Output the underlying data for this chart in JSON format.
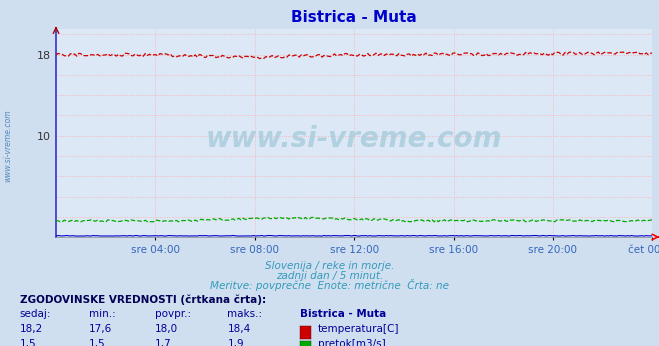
{
  "title": "Bistrica - Muta",
  "title_color": "#0000cc",
  "bg_color": "#d0dff0",
  "plot_bg_color": "#dce8f5",
  "grid_h_color": "#ffaaaa",
  "grid_v_color": "#ffaaaa",
  "left_spine_color": "#3333cc",
  "xlabel_color": "#3366bb",
  "x_tick_labels": [
    "sre 04:00",
    "sre 08:00",
    "sre 12:00",
    "sre 16:00",
    "sre 20:00",
    "čet 00:00"
  ],
  "x_tick_positions": [
    0.1667,
    0.3333,
    0.5,
    0.6667,
    0.8333,
    1.0
  ],
  "y_ticks_labeled": [
    10,
    18
  ],
  "ylim": [
    0,
    20.5
  ],
  "xlim": [
    0,
    1.0
  ],
  "subtitle_line1": "Slovenija / reke in morje.",
  "subtitle_line2": "zadnji dan / 5 minut.",
  "subtitle_line3": "Meritve: povprečne  Enote: metrične  Črta: ne",
  "subtitle_color": "#3399bb",
  "watermark": "www.si-vreme.com",
  "watermark_color": "#aaccdd",
  "side_text": "www.si-vreme.com",
  "side_text_color": "#5588bb",
  "temp_color": "#cc0000",
  "flow_color": "#00aa00",
  "level_color": "#0000cc",
  "table_header": "ZGODOVINSKE VREDNOSTI (črtkana črta):",
  "table_cols": [
    "sedaj:",
    "min.:",
    "povpr.:",
    "maks.:",
    "Bistrica - Muta"
  ],
  "table_row1": [
    "18,2",
    "17,6",
    "18,0",
    "18,4",
    "temperatura[C]"
  ],
  "table_row2": [
    "1,5",
    "1,5",
    "1,7",
    "1,9",
    "pretok[m3/s]"
  ],
  "table_color": "#000099",
  "table_header_color": "#000055"
}
